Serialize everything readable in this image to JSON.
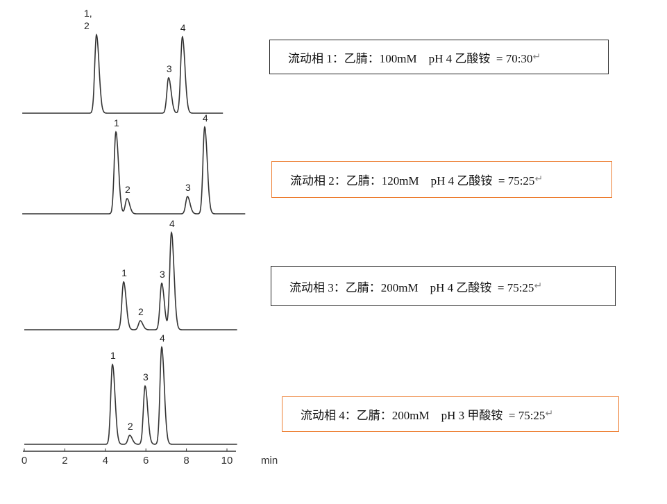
{
  "chart_data": {
    "type": "line",
    "xlabel": "min",
    "xlim": [
      0,
      10
    ],
    "xticks": [
      "0",
      "2",
      "4",
      "6",
      "8",
      "10"
    ],
    "traces": [
      {
        "peaks": [
          {
            "label": "1,\n2",
            "x": 3.56,
            "height": 113
          },
          {
            "label": "3",
            "x": 7.12,
            "height": 51
          },
          {
            "label": "4",
            "x": 7.8,
            "height": 110
          }
        ],
        "xrange": [
          -0.1,
          9.8
        ]
      },
      {
        "peaks": [
          {
            "label": "1",
            "x": 4.52,
            "height": 118
          },
          {
            "label": "2",
            "x": 5.07,
            "height": 22
          },
          {
            "label": "3",
            "x": 8.05,
            "height": 25
          },
          {
            "label": "4",
            "x": 8.9,
            "height": 125
          }
        ],
        "xrange": [
          -0.1,
          10.9
        ]
      },
      {
        "peaks": [
          {
            "label": "1",
            "x": 4.9,
            "height": 69
          },
          {
            "label": "2",
            "x": 5.72,
            "height": 13
          },
          {
            "label": "3",
            "x": 6.78,
            "height": 67
          },
          {
            "label": "4",
            "x": 7.26,
            "height": 140
          }
        ],
        "xrange": [
          0,
          10.5
        ]
      },
      {
        "peaks": [
          {
            "label": "1",
            "x": 4.35,
            "height": 115
          },
          {
            "label": "2",
            "x": 5.2,
            "height": 13
          },
          {
            "label": "3",
            "x": 5.96,
            "height": 84
          },
          {
            "label": "4",
            "x": 6.78,
            "height": 140
          }
        ],
        "xrange": [
          0,
          10.5
        ]
      }
    ],
    "accent_colors": {
      "black_border": "#222222",
      "orange_border": "#ed7d31"
    }
  },
  "conditions": [
    {
      "text": "流动相 1：乙腈：100mM    pH 4 乙酸铵  = 70:30",
      "mark": "↵",
      "border": "black"
    },
    {
      "text": "流动相 2：乙腈：120mM    pH 4 乙酸铵  = 75:25",
      "mark": "↵",
      "border": "orange"
    },
    {
      "text": "流动相 3：乙腈：200mM    pH 4 乙酸铵  = 75:25",
      "mark": "↵",
      "border": "black"
    },
    {
      "text": "流动相 4：乙腈：200mM    pH 3 甲酸铵  = 75:25",
      "mark": "↵",
      "border": "orange"
    }
  ]
}
